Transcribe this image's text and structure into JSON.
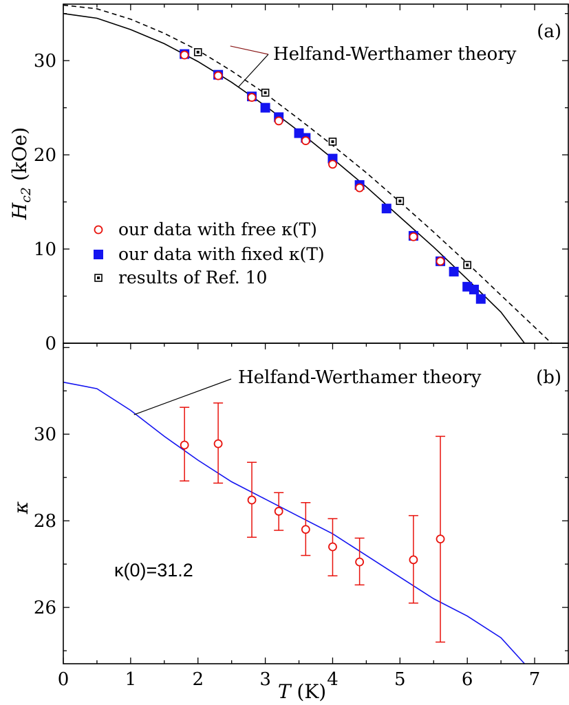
{
  "chart_data": [
    {
      "panel": "a",
      "type": "scatter",
      "panel_label": "(a)",
      "xlabel": "T (K)",
      "ylabel": "H_c2 (kOe)",
      "ylabel_main": "H",
      "ylabel_sub": "c2",
      "ylabel_unit": " (kOe)",
      "xlim": [
        0,
        7.5
      ],
      "ylim": [
        0,
        36
      ],
      "yticks": [
        0,
        10,
        20,
        30
      ],
      "annotation": "Helfand-Werthamer theory",
      "series": [
        {
          "name": "our data with free κ(T)",
          "marker": "open-circle",
          "color": "#e8120c",
          "x": [
            1.8,
            2.3,
            2.8,
            3.2,
            3.6,
            4.0,
            4.4,
            5.2,
            5.6
          ],
          "y": [
            30.6,
            28.4,
            26.1,
            23.6,
            21.5,
            19.0,
            16.5,
            11.3,
            8.7
          ]
        },
        {
          "name": "our data with fixed κ(T)",
          "marker": "filled-square",
          "color": "#1414f0",
          "x": [
            1.8,
            2.3,
            2.8,
            3.0,
            3.2,
            3.5,
            3.6,
            4.0,
            4.4,
            4.8,
            5.2,
            5.6,
            5.8,
            6.0,
            6.1,
            6.2
          ],
          "y": [
            30.7,
            28.5,
            26.2,
            25.0,
            24.0,
            22.3,
            21.8,
            19.6,
            16.8,
            14.3,
            11.4,
            8.7,
            7.6,
            6.0,
            5.7,
            4.7
          ]
        },
        {
          "name": "results of Ref. 10",
          "marker": "dotted-square",
          "color": "#000000",
          "x": [
            2.0,
            3.0,
            4.0,
            5.0,
            6.0
          ],
          "y": [
            30.9,
            26.6,
            21.4,
            15.1,
            8.3
          ]
        },
        {
          "style": "solid-line",
          "color": "#000000",
          "x": [
            0,
            0.5,
            1.0,
            1.5,
            2.0,
            2.5,
            3.0,
            3.5,
            4.0,
            4.5,
            5.0,
            5.5,
            6.0,
            6.5,
            6.85
          ],
          "y": [
            35.0,
            34.5,
            33.3,
            31.8,
            29.9,
            27.7,
            25.2,
            22.5,
            19.6,
            16.6,
            13.4,
            10.2,
            6.8,
            3.3,
            0
          ]
        },
        {
          "style": "dashed-line",
          "color": "#000000",
          "x": [
            0,
            0.5,
            1.0,
            1.5,
            2.0,
            2.5,
            3.0,
            3.5,
            4.0,
            4.5,
            5.0,
            5.5,
            6.0,
            6.5,
            7.0,
            7.25
          ],
          "y": [
            35.9,
            35.5,
            34.4,
            32.9,
            31.1,
            28.9,
            26.5,
            23.8,
            21.0,
            18.1,
            15.0,
            11.8,
            8.5,
            5.1,
            1.7,
            0
          ]
        }
      ]
    },
    {
      "panel": "b",
      "type": "scatter",
      "panel_label": "(b)",
      "xlabel_main": "T",
      "xlabel_unit": " (K)",
      "ylabel": "κ",
      "xlim": [
        0,
        7.5
      ],
      "ylim": [
        24.7,
        32.1
      ],
      "xticks": [
        0,
        1,
        2,
        3,
        4,
        5,
        6,
        7
      ],
      "yticks": [
        26,
        28,
        30
      ],
      "annotation": "Helfand-Werthamer theory",
      "kappa0_label": "κ(0)=31.2",
      "series": [
        {
          "marker": "open-circle-errorbar",
          "color": "#e8120c",
          "x": [
            1.8,
            2.3,
            2.8,
            3.2,
            3.6,
            4.0,
            4.4,
            5.2,
            5.6
          ],
          "y": [
            29.75,
            29.78,
            28.48,
            28.22,
            27.8,
            27.4,
            27.05,
            27.1,
            27.58
          ],
          "yerr_low": [
            28.92,
            28.87,
            27.62,
            27.78,
            27.2,
            26.73,
            26.52,
            26.1,
            25.2
          ],
          "yerr_high": [
            30.62,
            30.72,
            29.35,
            28.65,
            28.42,
            28.05,
            27.6,
            28.12,
            29.95
          ]
        },
        {
          "style": "line",
          "color": "#1414f0",
          "x": [
            0,
            0.5,
            1.0,
            1.5,
            2.0,
            2.5,
            3.0,
            3.5,
            4.0,
            4.5,
            5.0,
            5.5,
            6.0,
            6.5,
            6.85
          ],
          "y": [
            31.2,
            31.05,
            30.55,
            29.95,
            29.4,
            28.9,
            28.5,
            28.1,
            27.7,
            27.2,
            26.7,
            26.2,
            25.8,
            25.3,
            24.7
          ]
        }
      ]
    }
  ]
}
